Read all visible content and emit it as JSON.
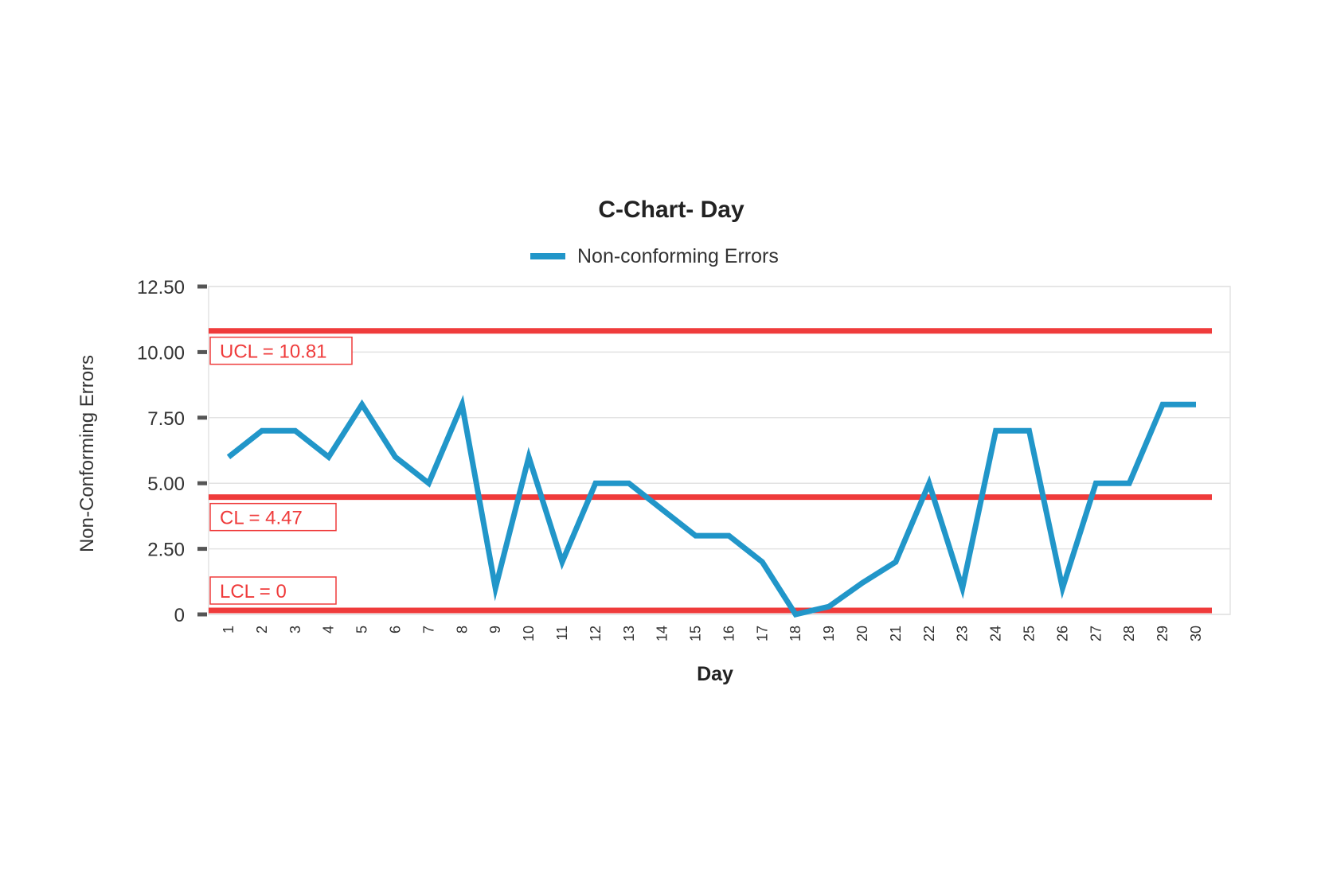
{
  "chart_data": {
    "type": "line",
    "title": "C-Chart- Day",
    "xlabel": "Day",
    "ylabel": "Non-Conforming Errors",
    "ylim": [
      0,
      12.5
    ],
    "grid": true,
    "legend_position": "top-center",
    "y_ticks": [
      "0",
      "2.50",
      "5.00",
      "7.50",
      "10.00",
      "12.50"
    ],
    "categories": [
      "1",
      "2",
      "3",
      "4",
      "5",
      "6",
      "7",
      "8",
      "9",
      "10",
      "11",
      "12",
      "13",
      "14",
      "15",
      "16",
      "17",
      "18",
      "19",
      "20",
      "21",
      "22",
      "23",
      "24",
      "25",
      "26",
      "27",
      "28",
      "29",
      "30"
    ],
    "series": [
      {
        "name": "Non-conforming Errors",
        "color": "#2196c9",
        "values": [
          6,
          7,
          7,
          6,
          8,
          6,
          5,
          8,
          1,
          6,
          2,
          5,
          5,
          4,
          3,
          3,
          2,
          0,
          0.3,
          1.2,
          2,
          5,
          1,
          7,
          7,
          1,
          5,
          5,
          8,
          8
        ]
      }
    ],
    "control_lines": [
      {
        "label": "UCL = 10.81",
        "value": 10.81,
        "color": "#ef3b3b"
      },
      {
        "label": "CL = 4.47",
        "value": 4.47,
        "color": "#ef3b3b"
      },
      {
        "label": "LCL = 0",
        "value": 0,
        "color": "#ef3b3b"
      }
    ]
  }
}
